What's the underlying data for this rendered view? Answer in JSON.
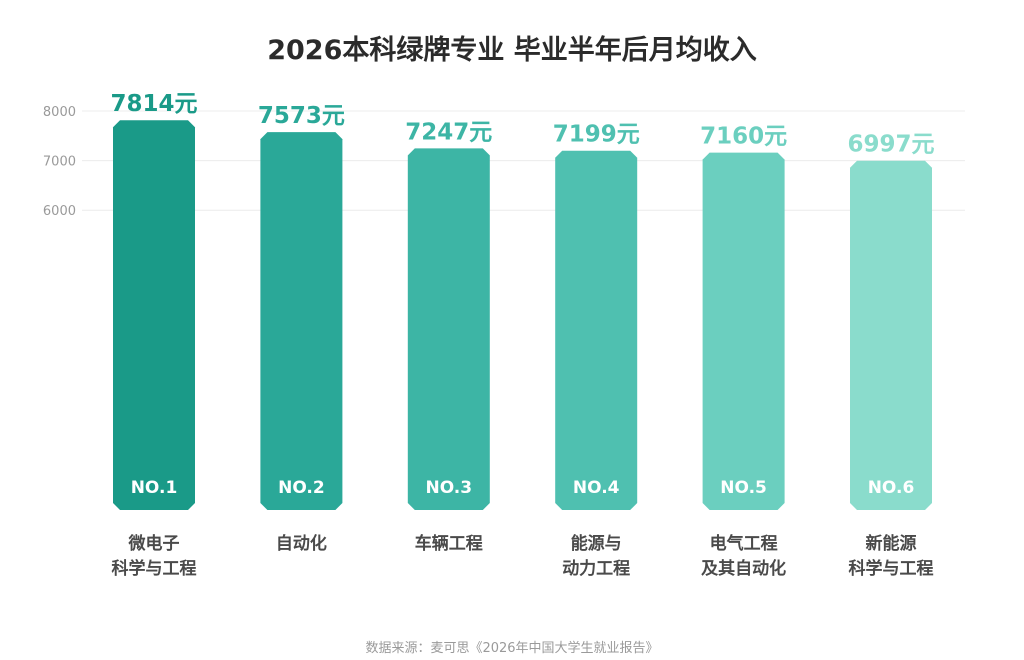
{
  "title": "2026本科绿牌专业 毕业半年后月均收入",
  "source": "数据来源：麦可思《2026年中国大学生就业报告》",
  "value_suffix": "元",
  "chart_data": {
    "type": "bar",
    "title": "2026本科绿牌专业 毕业半年后月均收入",
    "xlabel": "",
    "ylabel": "",
    "y_ticks": [
      6000,
      7000,
      8000
    ],
    "categories": [
      [
        "微电子",
        "科学与工程"
      ],
      [
        "自动化"
      ],
      [
        "车辆工程"
      ],
      [
        "能源与",
        "动力工程"
      ],
      [
        "电气工程",
        "及其自动化"
      ],
      [
        "新能源",
        "科学与工程"
      ]
    ],
    "values": [
      7814,
      7573,
      7247,
      7199,
      7160,
      6997
    ],
    "ranks": [
      "NO.1",
      "NO.2",
      "NO.3",
      "NO.4",
      "NO.5",
      "NO.6"
    ],
    "colors": [
      "#1a9a88",
      "#2aa898",
      "#3db5a5",
      "#4fc0b0",
      "#6bcfbf",
      "#8adccc"
    ],
    "grid": true,
    "legend": "none"
  }
}
